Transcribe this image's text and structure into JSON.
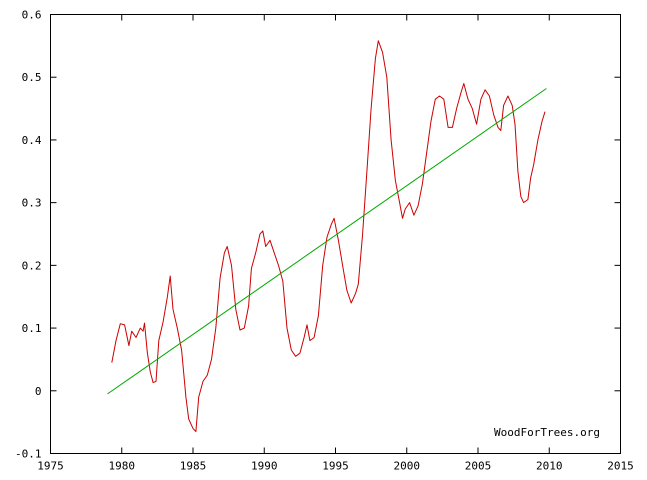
{
  "chart_data": {
    "type": "line",
    "title": "",
    "xlabel": "",
    "ylabel": "",
    "xlim": [
      1975,
      2015
    ],
    "ylim": [
      -0.1,
      0.6
    ],
    "x_ticks": [
      1975,
      1980,
      1985,
      1990,
      1995,
      2000,
      2005,
      2010,
      2015
    ],
    "x_tick_labels": [
      "1975",
      "1980",
      "1985",
      "1990",
      "1995",
      "2000",
      "2005",
      "2010",
      "2015"
    ],
    "y_ticks": [
      -0.1,
      0,
      0.1,
      0.2,
      0.3,
      0.4,
      0.5,
      0.6
    ],
    "y_tick_labels": [
      "-0.1",
      "0",
      "0.1",
      "0.2",
      "0.3",
      "0.4",
      "0.5",
      "0.6"
    ],
    "grid": false,
    "legend": "none",
    "series": [
      {
        "color": "#cc0000",
        "points": [
          [
            1979.3,
            0.045
          ],
          [
            1979.6,
            0.08
          ],
          [
            1979.9,
            0.107
          ],
          [
            1980.2,
            0.105
          ],
          [
            1980.5,
            0.072
          ],
          [
            1980.7,
            0.095
          ],
          [
            1981.0,
            0.085
          ],
          [
            1981.3,
            0.1
          ],
          [
            1981.5,
            0.095
          ],
          [
            1981.6,
            0.108
          ],
          [
            1981.8,
            0.06
          ],
          [
            1982.0,
            0.03
          ],
          [
            1982.2,
            0.013
          ],
          [
            1982.4,
            0.015
          ],
          [
            1982.6,
            0.08
          ],
          [
            1982.9,
            0.11
          ],
          [
            1983.2,
            0.15
          ],
          [
            1983.4,
            0.183
          ],
          [
            1983.6,
            0.13
          ],
          [
            1983.9,
            0.1
          ],
          [
            1984.2,
            0.065
          ],
          [
            1984.5,
            -0.01
          ],
          [
            1984.7,
            -0.045
          ],
          [
            1985.0,
            -0.06
          ],
          [
            1985.2,
            -0.065
          ],
          [
            1985.4,
            -0.01
          ],
          [
            1985.7,
            0.015
          ],
          [
            1986.0,
            0.025
          ],
          [
            1986.3,
            0.05
          ],
          [
            1986.6,
            0.1
          ],
          [
            1986.9,
            0.18
          ],
          [
            1987.2,
            0.22
          ],
          [
            1987.4,
            0.23
          ],
          [
            1987.7,
            0.2
          ],
          [
            1988.0,
            0.13
          ],
          [
            1988.3,
            0.097
          ],
          [
            1988.6,
            0.1
          ],
          [
            1988.9,
            0.135
          ],
          [
            1989.1,
            0.195
          ],
          [
            1989.4,
            0.22
          ],
          [
            1989.7,
            0.25
          ],
          [
            1989.9,
            0.255
          ],
          [
            1990.1,
            0.23
          ],
          [
            1990.4,
            0.24
          ],
          [
            1990.7,
            0.22
          ],
          [
            1991.0,
            0.2
          ],
          [
            1991.3,
            0.175
          ],
          [
            1991.6,
            0.1
          ],
          [
            1991.9,
            0.065
          ],
          [
            1992.2,
            0.055
          ],
          [
            1992.5,
            0.06
          ],
          [
            1992.8,
            0.085
          ],
          [
            1993.0,
            0.105
          ],
          [
            1993.2,
            0.08
          ],
          [
            1993.5,
            0.085
          ],
          [
            1993.8,
            0.12
          ],
          [
            1994.1,
            0.2
          ],
          [
            1994.4,
            0.245
          ],
          [
            1994.7,
            0.265
          ],
          [
            1994.9,
            0.275
          ],
          [
            1995.2,
            0.24
          ],
          [
            1995.5,
            0.2
          ],
          [
            1995.8,
            0.16
          ],
          [
            1996.1,
            0.14
          ],
          [
            1996.4,
            0.155
          ],
          [
            1996.6,
            0.17
          ],
          [
            1996.9,
            0.25
          ],
          [
            1997.2,
            0.35
          ],
          [
            1997.5,
            0.45
          ],
          [
            1997.8,
            0.53
          ],
          [
            1998.0,
            0.558
          ],
          [
            1998.3,
            0.54
          ],
          [
            1998.6,
            0.5
          ],
          [
            1998.9,
            0.4
          ],
          [
            1999.2,
            0.335
          ],
          [
            1999.5,
            0.3
          ],
          [
            1999.7,
            0.275
          ],
          [
            1999.9,
            0.29
          ],
          [
            2000.2,
            0.3
          ],
          [
            2000.5,
            0.28
          ],
          [
            2000.8,
            0.295
          ],
          [
            2001.1,
            0.33
          ],
          [
            2001.4,
            0.38
          ],
          [
            2001.7,
            0.43
          ],
          [
            2002.0,
            0.465
          ],
          [
            2002.3,
            0.47
          ],
          [
            2002.6,
            0.465
          ],
          [
            2002.9,
            0.42
          ],
          [
            2003.2,
            0.42
          ],
          [
            2003.5,
            0.45
          ],
          [
            2003.8,
            0.475
          ],
          [
            2004.0,
            0.49
          ],
          [
            2004.3,
            0.465
          ],
          [
            2004.6,
            0.45
          ],
          [
            2004.9,
            0.425
          ],
          [
            2005.2,
            0.465
          ],
          [
            2005.5,
            0.48
          ],
          [
            2005.8,
            0.47
          ],
          [
            2006.1,
            0.44
          ],
          [
            2006.4,
            0.42
          ],
          [
            2006.6,
            0.415
          ],
          [
            2006.8,
            0.455
          ],
          [
            2007.1,
            0.47
          ],
          [
            2007.4,
            0.455
          ],
          [
            2007.6,
            0.425
          ],
          [
            2007.8,
            0.35
          ],
          [
            2008.0,
            0.31
          ],
          [
            2008.2,
            0.3
          ],
          [
            2008.5,
            0.305
          ],
          [
            2008.7,
            0.34
          ],
          [
            2008.9,
            0.36
          ],
          [
            2009.2,
            0.4
          ],
          [
            2009.5,
            0.43
          ],
          [
            2009.7,
            0.445
          ]
        ]
      },
      {
        "color": "#00aa00",
        "points": [
          [
            1979.0,
            -0.005
          ],
          [
            2009.8,
            0.482
          ]
        ]
      }
    ],
    "annotation": "WoodForTrees.org"
  }
}
